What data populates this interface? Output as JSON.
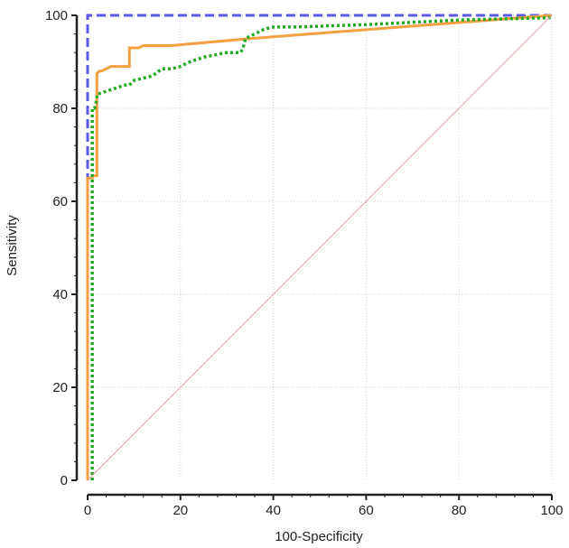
{
  "chart_data": {
    "type": "line",
    "title": "",
    "xlabel": "100-Specificity",
    "ylabel": "Sensitivity",
    "xlim": [
      0,
      100
    ],
    "ylim": [
      0,
      100
    ],
    "xticks": [
      0,
      20,
      40,
      60,
      80,
      100
    ],
    "yticks": [
      0,
      20,
      40,
      60,
      80,
      100
    ],
    "xtick_labels": [
      "0",
      "20",
      "40",
      "60",
      "80",
      "100"
    ],
    "ytick_labels": [
      "0",
      "20",
      "40",
      "60",
      "80",
      "100"
    ],
    "grid": true,
    "legend": "none",
    "series": [
      {
        "color": "#5a5ae6",
        "style": "dashed",
        "x": [
          0,
          0,
          0,
          100
        ],
        "y": [
          0,
          66,
          100,
          100
        ]
      },
      {
        "color": "#f5a040",
        "style": "solid",
        "x": [
          0,
          0,
          1,
          1,
          2,
          2,
          2.5,
          3,
          4,
          5,
          6,
          7,
          8,
          9,
          9,
          11,
          12,
          18,
          35,
          100
        ],
        "y": [
          0,
          65,
          65,
          65.5,
          65.5,
          87.5,
          88,
          88,
          88.5,
          89,
          89,
          89,
          89,
          89,
          93,
          93,
          93.5,
          93.5,
          95,
          100
        ]
      },
      {
        "color": "#22aa22",
        "style": "dotted",
        "x": [
          1,
          1,
          1.5,
          2,
          2,
          5,
          8,
          9,
          10,
          14,
          16,
          18,
          20,
          22,
          25,
          30,
          33,
          33.5,
          34,
          36,
          38,
          40,
          45,
          60,
          80,
          100
        ],
        "y": [
          0,
          80,
          80,
          82,
          83,
          84,
          85,
          85,
          86,
          87,
          88.5,
          88.5,
          89,
          90,
          91,
          92,
          92,
          93,
          95,
          96,
          97,
          97.5,
          97.5,
          98,
          99,
          99.5
        ]
      },
      {
        "color": "#e8a0a0",
        "style": "reference",
        "x": [
          0,
          100
        ],
        "y": [
          0,
          100
        ]
      }
    ]
  }
}
